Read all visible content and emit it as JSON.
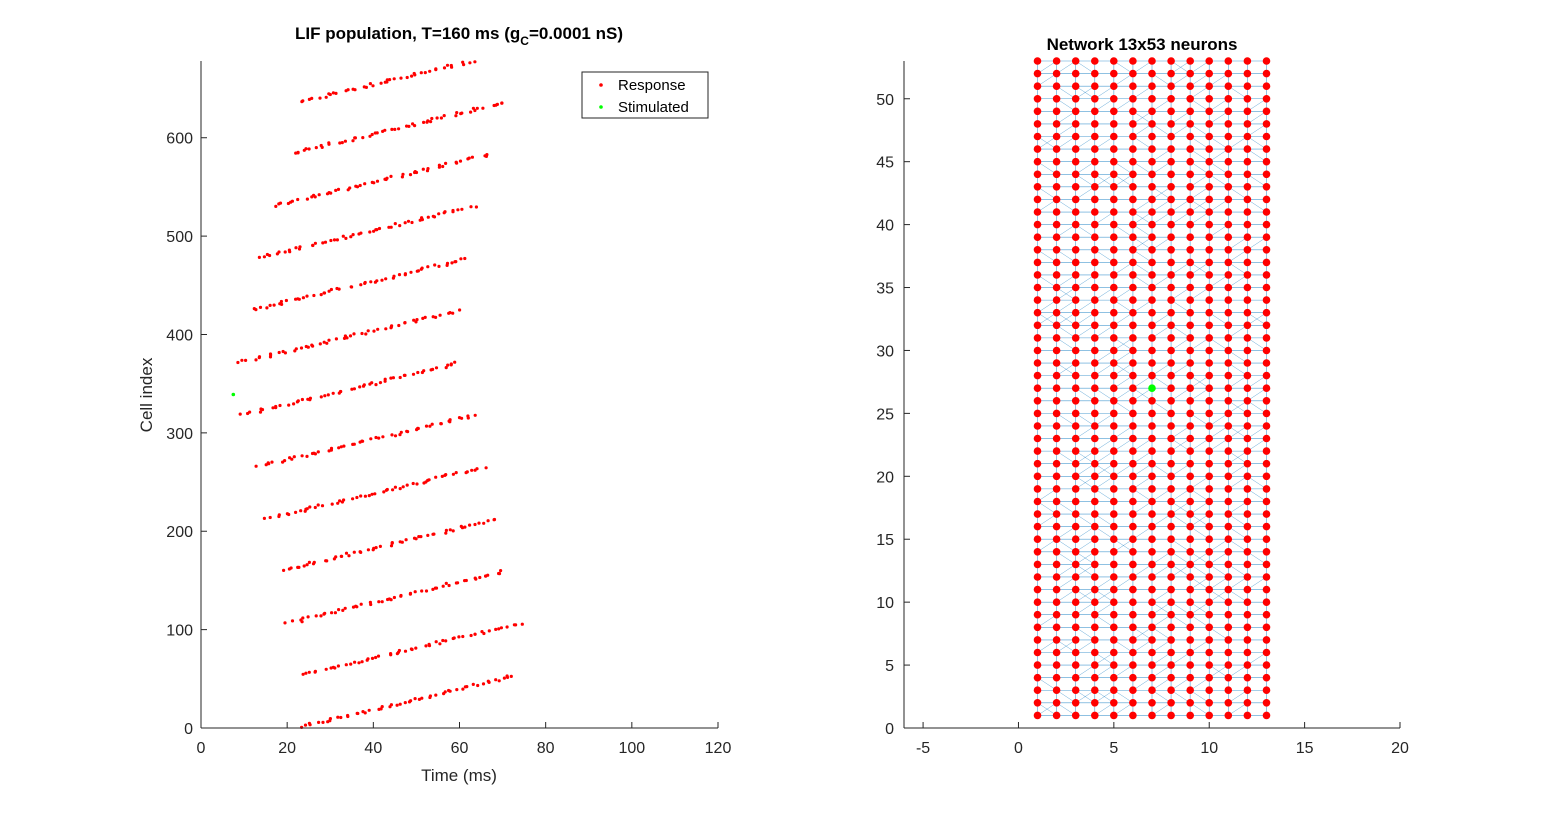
{
  "figure": {
    "background": "#ffffff",
    "colors": {
      "response": "#ff0000",
      "stimulated": "#00ff00",
      "edges": "#0072bd",
      "axis": "#262626"
    }
  },
  "chart_data": [
    {
      "type": "scatter",
      "title_main": "LIF population, T=160 ms (g",
      "title_sub": "C",
      "title_tail": "=0.0001 nS)",
      "xlabel": "Time (ms)",
      "ylabel": "Cell index",
      "xlim": [
        0,
        120
      ],
      "ylim": [
        0,
        678
      ],
      "xticks": [
        0,
        20,
        40,
        60,
        80,
        100,
        120
      ],
      "yticks": [
        0,
        100,
        200,
        300,
        400,
        500,
        600
      ],
      "legend": {
        "placement": "top-right",
        "entries": [
          "Response",
          "Stimulated"
        ]
      },
      "series": [
        {
          "name": "Response",
          "rows": [
            {
              "y_start": 1,
              "t_start": 23.0,
              "count": 53
            },
            {
              "y_start": 54,
              "t_start": 23.8,
              "count": 53
            },
            {
              "y_start": 107,
              "t_start": 20.5,
              "count": 53
            },
            {
              "y_start": 160,
              "t_start": 18.5,
              "count": 53
            },
            {
              "y_start": 213,
              "t_start": 15.5,
              "count": 53
            },
            {
              "y_start": 266,
              "t_start": 13.5,
              "count": 53
            },
            {
              "y_start": 319,
              "t_start": 10.0,
              "count": 53
            },
            {
              "y_start": 372,
              "t_start": 9.5,
              "count": 53
            },
            {
              "y_start": 425,
              "t_start": 12.0,
              "count": 53
            },
            {
              "y_start": 478,
              "t_start": 13.5,
              "count": 53
            },
            {
              "y_start": 531,
              "t_start": 17.0,
              "count": 53
            },
            {
              "y_start": 584,
              "t_start": 21.0,
              "count": 53
            },
            {
              "y_start": 637,
              "t_start": 23.5,
              "count": 42
            }
          ],
          "step_per_cell": 0.96
        },
        {
          "name": "Stimulated",
          "points": [
            {
              "t": 7.5,
              "y": 339
            }
          ]
        }
      ]
    },
    {
      "type": "scatter",
      "title": "Network 13x53 neurons",
      "xlim": [
        -6,
        20
      ],
      "ylim": [
        0,
        53
      ],
      "xticks": [
        -5,
        0,
        5,
        10,
        15,
        20
      ],
      "yticks": [
        0,
        5,
        10,
        15,
        20,
        25,
        30,
        35,
        40,
        45,
        50
      ],
      "grid": {
        "columns": 13,
        "rows": 53
      },
      "stimulated_node": {
        "x": 7,
        "y": 27
      },
      "edges": "nearest-neighbor and diagonal connections"
    }
  ]
}
